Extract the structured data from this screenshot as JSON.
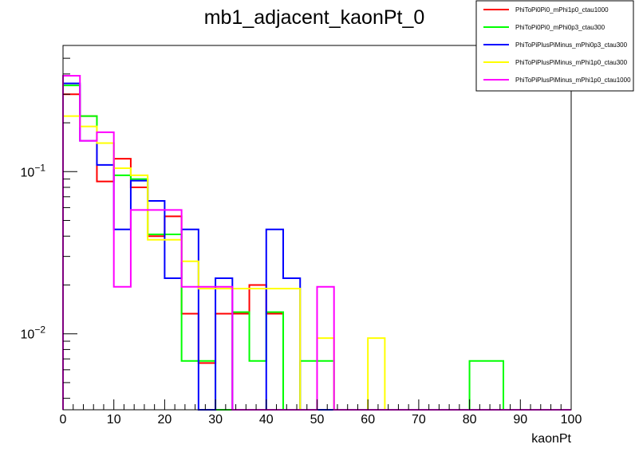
{
  "chart_data": {
    "type": "histogram",
    "title": "mb1_adjacent_kaonPt_0",
    "xlabel": "kaonPt",
    "ylabel": "",
    "xlim": [
      0,
      100
    ],
    "ylim": [
      0.0034,
      0.6
    ],
    "yscale": "log",
    "grid": false,
    "legend_position": "top-right",
    "bin_width": 3.333,
    "x_ticks": [
      "0",
      "10",
      "20",
      "30",
      "40",
      "50",
      "60",
      "70",
      "80",
      "90",
      "100"
    ],
    "y_ticks": [
      {
        "value": 0.1,
        "base": "10",
        "exp": "−1"
      },
      {
        "value": 0.01,
        "base": "10",
        "exp": "−2"
      }
    ],
    "series": [
      {
        "name": "PhiToPi0Pi0_mPhi1p0_ctau1000",
        "color": "#ff0000",
        "values": [
          0.3,
          0.22,
          0.087,
          0.12,
          0.08,
          0.04,
          0.053,
          0.0133,
          0.0066,
          0.0133,
          0.0133,
          0.02,
          0.0133,
          0,
          0,
          0,
          0,
          0,
          0,
          0,
          0,
          0,
          0,
          0,
          0,
          0,
          0,
          0,
          0,
          0
        ]
      },
      {
        "name": "PhiToPi0Pi0_mPhi0p3_ctau300",
        "color": "#00ff00",
        "values": [
          0.34,
          0.22,
          0.15,
          0.095,
          0.09,
          0.041,
          0.041,
          0.0068,
          0.0068,
          0,
          0.0136,
          0.0068,
          0.0136,
          0,
          0.0068,
          0.0068,
          0,
          0,
          0,
          0,
          0,
          0,
          0,
          0,
          0.0068,
          0.0068,
          0,
          0,
          0,
          0
        ]
      },
      {
        "name": "PhiToPiPlusPiMinus_mPhi0p3_ctau300",
        "color": "#0000ff",
        "values": [
          0.35,
          0.155,
          0.11,
          0.044,
          0.088,
          0.066,
          0.022,
          0.044,
          0,
          0.022,
          0,
          0,
          0.044,
          0.022,
          0,
          0,
          0,
          0,
          0,
          0,
          0,
          0,
          0,
          0,
          0,
          0,
          0,
          0,
          0,
          0
        ]
      },
      {
        "name": "PhiToPiPlusPiMinus_mPhi1p0_ctau300",
        "color": "#ffff00",
        "values": [
          0.22,
          0.19,
          0.15,
          0.105,
          0.095,
          0.038,
          0.038,
          0.028,
          0.019,
          0.019,
          0.019,
          0.019,
          0.019,
          0.019,
          0,
          0.0094,
          0,
          0,
          0.0094,
          0,
          0,
          0,
          0,
          0,
          0,
          0,
          0,
          0,
          0,
          0
        ]
      },
      {
        "name": "PhiToPiPlusPiMinus_mPhi1p0_ctau1000",
        "color": "#ff00ff",
        "values": [
          0.39,
          0.155,
          0.175,
          0.0195,
          0.058,
          0.058,
          0.058,
          0.0195,
          0.0195,
          0.0195,
          0,
          0,
          0,
          0,
          0,
          0.0195,
          0,
          0,
          0,
          0,
          0,
          0,
          0,
          0,
          0,
          0,
          0,
          0,
          0,
          0
        ]
      }
    ]
  }
}
